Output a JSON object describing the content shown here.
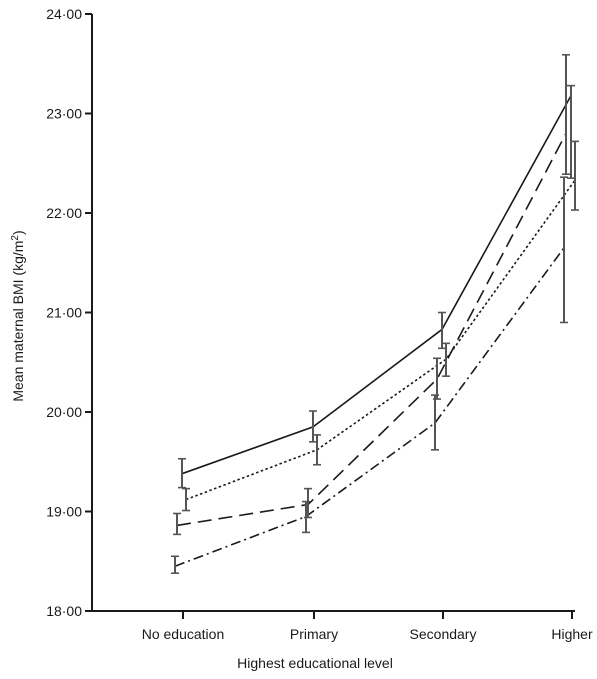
{
  "chart_data": {
    "type": "line",
    "title": "",
    "xlabel": "Highest educational level",
    "ylabel_main": "Mean maternal BMI (kg/m",
    "ylabel_sup": "2",
    "ylabel_end": ")",
    "categories": [
      "No education",
      "Primary",
      "Secondary",
      "Higher"
    ],
    "ylim": [
      18.0,
      24.0
    ],
    "yticks": [
      18,
      19,
      20,
      21,
      22,
      23,
      24
    ],
    "ytick_labels": [
      "18·00",
      "19·00",
      "20·00",
      "21·00",
      "22·00",
      "23·00",
      "24·00"
    ],
    "grid": false,
    "legend": "none",
    "series": [
      {
        "style": "solid",
        "values": [
          19.38,
          19.85,
          20.83,
          23.18
        ],
        "err_low": [
          19.24,
          19.7,
          20.64,
          22.35
        ],
        "err_high": [
          19.53,
          20.01,
          21.0,
          23.28
        ]
      },
      {
        "style": "dotted",
        "values": [
          19.12,
          19.62,
          20.53,
          22.33
        ],
        "err_low": [
          19.01,
          19.47,
          20.36,
          22.03
        ],
        "err_high": [
          19.23,
          19.77,
          20.69,
          22.72
        ]
      },
      {
        "style": "dashed",
        "values": [
          18.86,
          19.07,
          20.33,
          22.8
        ],
        "err_low": [
          18.77,
          18.94,
          20.13,
          22.39
        ],
        "err_high": [
          18.98,
          19.23,
          20.54,
          23.59
        ]
      },
      {
        "style": "dashdot",
        "values": [
          18.45,
          18.95,
          19.89,
          21.65
        ],
        "err_low": [
          18.38,
          18.79,
          19.62,
          20.9
        ],
        "err_high": [
          18.55,
          19.1,
          20.17,
          22.36
        ]
      }
    ]
  }
}
